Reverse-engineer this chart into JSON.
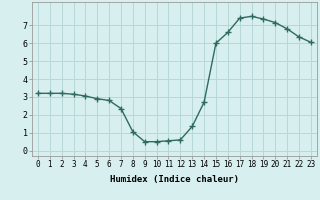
{
  "x": [
    0,
    1,
    2,
    3,
    4,
    5,
    6,
    7,
    8,
    9,
    10,
    11,
    12,
    13,
    14,
    15,
    16,
    17,
    18,
    19,
    20,
    21,
    22,
    23
  ],
  "y": [
    3.2,
    3.2,
    3.2,
    3.15,
    3.05,
    2.9,
    2.8,
    2.35,
    1.05,
    0.5,
    0.5,
    0.55,
    0.6,
    1.35,
    2.7,
    6.0,
    6.6,
    7.4,
    7.5,
    7.35,
    7.15,
    6.8,
    6.35,
    6.05
  ],
  "line_color": "#2e6b5e",
  "bg_color": "#d8eff0",
  "grid_color": "#b8d8d8",
  "xlabel": "Humidex (Indice chaleur)",
  "xlim": [
    -0.5,
    23.5
  ],
  "ylim": [
    -0.3,
    8.3
  ],
  "yticks": [
    0,
    1,
    2,
    3,
    4,
    5,
    6,
    7
  ],
  "xticks": [
    0,
    1,
    2,
    3,
    4,
    5,
    6,
    7,
    8,
    9,
    10,
    11,
    12,
    13,
    14,
    15,
    16,
    17,
    18,
    19,
    20,
    21,
    22,
    23
  ],
  "tick_fontsize": 5.5,
  "xlabel_fontsize": 6.5,
  "marker_size": 2.0,
  "line_width": 1.0
}
